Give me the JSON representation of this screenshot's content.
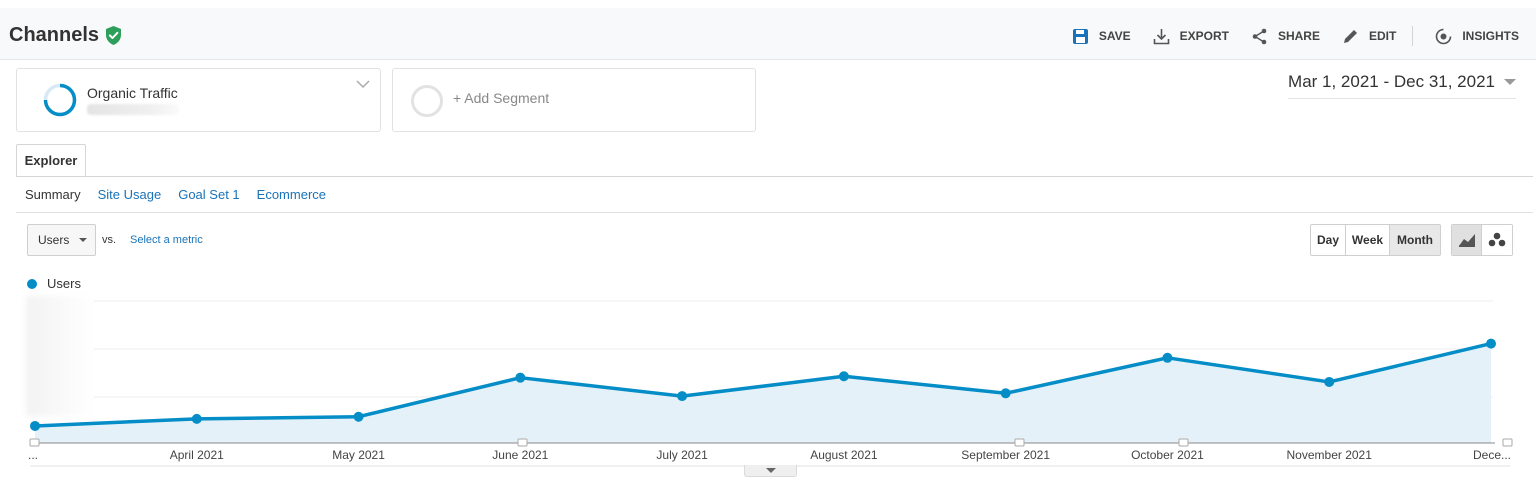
{
  "header": {
    "title": "Channels",
    "actions": [
      {
        "label": "SAVE",
        "icon": "save-icon"
      },
      {
        "label": "EXPORT",
        "icon": "export-icon"
      },
      {
        "label": "SHARE",
        "icon": "share-icon"
      },
      {
        "label": "EDIT",
        "icon": "edit-icon"
      },
      {
        "label": "INSIGHTS",
        "icon": "insights-icon"
      }
    ]
  },
  "segments": {
    "active": {
      "name": "Organic Traffic"
    },
    "add_label": "+ Add Segment"
  },
  "date_range": "Mar 1, 2021 - Dec 31, 2021",
  "tabs": {
    "explorer": "Explorer"
  },
  "subtabs": [
    "Summary",
    "Site Usage",
    "Goal Set 1",
    "Ecommerce"
  ],
  "metric_select": {
    "value": "Users",
    "vs": "vs.",
    "select_metric": "Select a metric"
  },
  "period": {
    "options": [
      "Day",
      "Week",
      "Month"
    ],
    "selected": "Month"
  },
  "legend": {
    "label": "Users"
  },
  "colors": {
    "accent": "#058dc7",
    "fill": "#e5f1f8",
    "verified": "#2e9e5b",
    "link": "#1a73b8"
  },
  "chart_data": {
    "type": "line",
    "categories": [
      "...",
      "April 2021",
      "May 2021",
      "June 2021",
      "July 2021",
      "August 2021",
      "September 2021",
      "October 2021",
      "November 2021",
      "Dece..."
    ],
    "series": [
      {
        "name": "Users",
        "values": [
          12,
          17,
          18.5,
          46,
          33,
          47,
          35,
          60,
          43,
          70
        ]
      }
    ],
    "ylim": [
      0,
      100
    ],
    "grid": true,
    "legend": "top-left"
  }
}
